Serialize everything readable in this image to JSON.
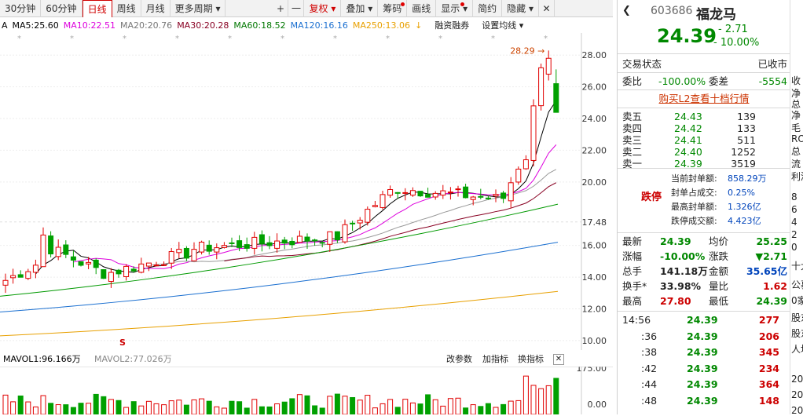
{
  "toolbar": {
    "items": [
      "30分钟",
      "60分钟",
      "日线",
      "周线",
      "月线",
      "更多周期"
    ],
    "plus": "+",
    "minus": "一",
    "fuquan": "复权",
    "diejia": "叠加",
    "chouma": "筹码",
    "huaxian": "画线",
    "xianshi": "显示",
    "jianyue": "简约",
    "yincang": "隐藏"
  },
  "ma": {
    "a_label": "A",
    "ma5": "MA5:25.60",
    "ma10": "MA10:22.51",
    "ma20": "MA20:20.76",
    "ma30": "MA30:20.28",
    "ma60": "MA60:18.52",
    "ma120": "MA120:16.16",
    "ma250": "MA250:13.06",
    "rongzi": "融资融券",
    "shezhi": "设置均线"
  },
  "colors": {
    "up": "#e00000",
    "down": "#00a000",
    "ma5": "#000000",
    "ma10": "#dd00dd",
    "ma20": "#999999",
    "ma30": "#880022",
    "ma60": "#009900",
    "ma120": "#1a6fd0",
    "ma250": "#e8a000"
  },
  "chart_data": {
    "type": "candlestick",
    "y_ticks": [
      "28.00",
      "26.00",
      "24.00",
      "22.00",
      "20.00",
      "17.48",
      "16.00",
      "14.00",
      "12.00",
      "10.00"
    ],
    "max_label": "28.29",
    "ylim": [
      9.5,
      29
    ]
  },
  "volume": {
    "mavol1": "MAVOL1:96.166万",
    "mavol2": "MAVOL2:77.026万",
    "gaican": "改参数",
    "jiazhi": "加指标",
    "huanzhi": "换指标",
    "close": "✕",
    "ticks": [
      "175.00",
      "0.00"
    ]
  },
  "quote": {
    "code": "603686",
    "name": "福龙马",
    "price": "24.39",
    "change": "- 2.71",
    "pct": "- 10.00%",
    "state_label": "交易状态",
    "state_value": "已收市",
    "weibi_label": "委比",
    "weibi_value": "-100.00%",
    "weicha_label": "委差",
    "weicha_value": "-5554",
    "l2_link": "购买L2查看十档行情",
    "asks": [
      {
        "label": "卖五",
        "price": "24.43",
        "vol": "139"
      },
      {
        "label": "卖四",
        "price": "24.42",
        "vol": "133"
      },
      {
        "label": "卖三",
        "price": "24.41",
        "vol": "511"
      },
      {
        "label": "卖二",
        "price": "24.40",
        "vol": "1252"
      },
      {
        "label": "卖一",
        "price": "24.39",
        "vol": "3519"
      }
    ],
    "limit_label": "跌停",
    "limit_info": [
      {
        "k": "当前封单额:",
        "v": "858.29万"
      },
      {
        "k": "封单占成交:",
        "v": "0.25%"
      },
      {
        "k": "最高封单额:",
        "v": "1.326亿"
      },
      {
        "k": "跌停成交额:",
        "v": "4.423亿"
      }
    ],
    "stats": [
      {
        "k1": "最新",
        "v1": "24.39",
        "c1": "green",
        "k2": "均价",
        "v2": "25.25",
        "c2": "green"
      },
      {
        "k1": "涨幅",
        "v1": "-10.00%",
        "c1": "green",
        "k2": "涨跌",
        "v2": "▼2.71",
        "c2": "green"
      },
      {
        "k1": "总手",
        "v1": "141.18万",
        "c1": "",
        "k2": "金额",
        "v2": "35.65亿",
        "c2": "blue"
      },
      {
        "k1": "换手*",
        "v1": "33.98%",
        "c1": "",
        "k2": "量比",
        "v2": "1.62",
        "c2": "red"
      },
      {
        "k1": "最高",
        "v1": "27.80",
        "c1": "red",
        "k2": "最低",
        "v2": "24.39",
        "c2": "green"
      }
    ],
    "ticks_rows": [
      {
        "t": "14:56",
        "p": "24.39",
        "v": "277"
      },
      {
        "t": ":36",
        "p": "24.39",
        "v": "206"
      },
      {
        "t": ":38",
        "p": "24.39",
        "v": "345"
      },
      {
        "t": ":42",
        "p": "24.39",
        "v": "234"
      },
      {
        "t": ":44",
        "p": "24.39",
        "v": "364"
      },
      {
        "t": ":48",
        "p": "24.39",
        "v": "148"
      }
    ]
  },
  "side": [
    "收",
    "净",
    "总",
    "净",
    "毛",
    "ROE",
    "总",
    "流",
    "利润",
    "8",
    "6",
    "4",
    "2",
    "0",
    "十大",
    "公募",
    "0家",
    "股东",
    "股东",
    "人均",
    "20",
    "20",
    "20"
  ]
}
